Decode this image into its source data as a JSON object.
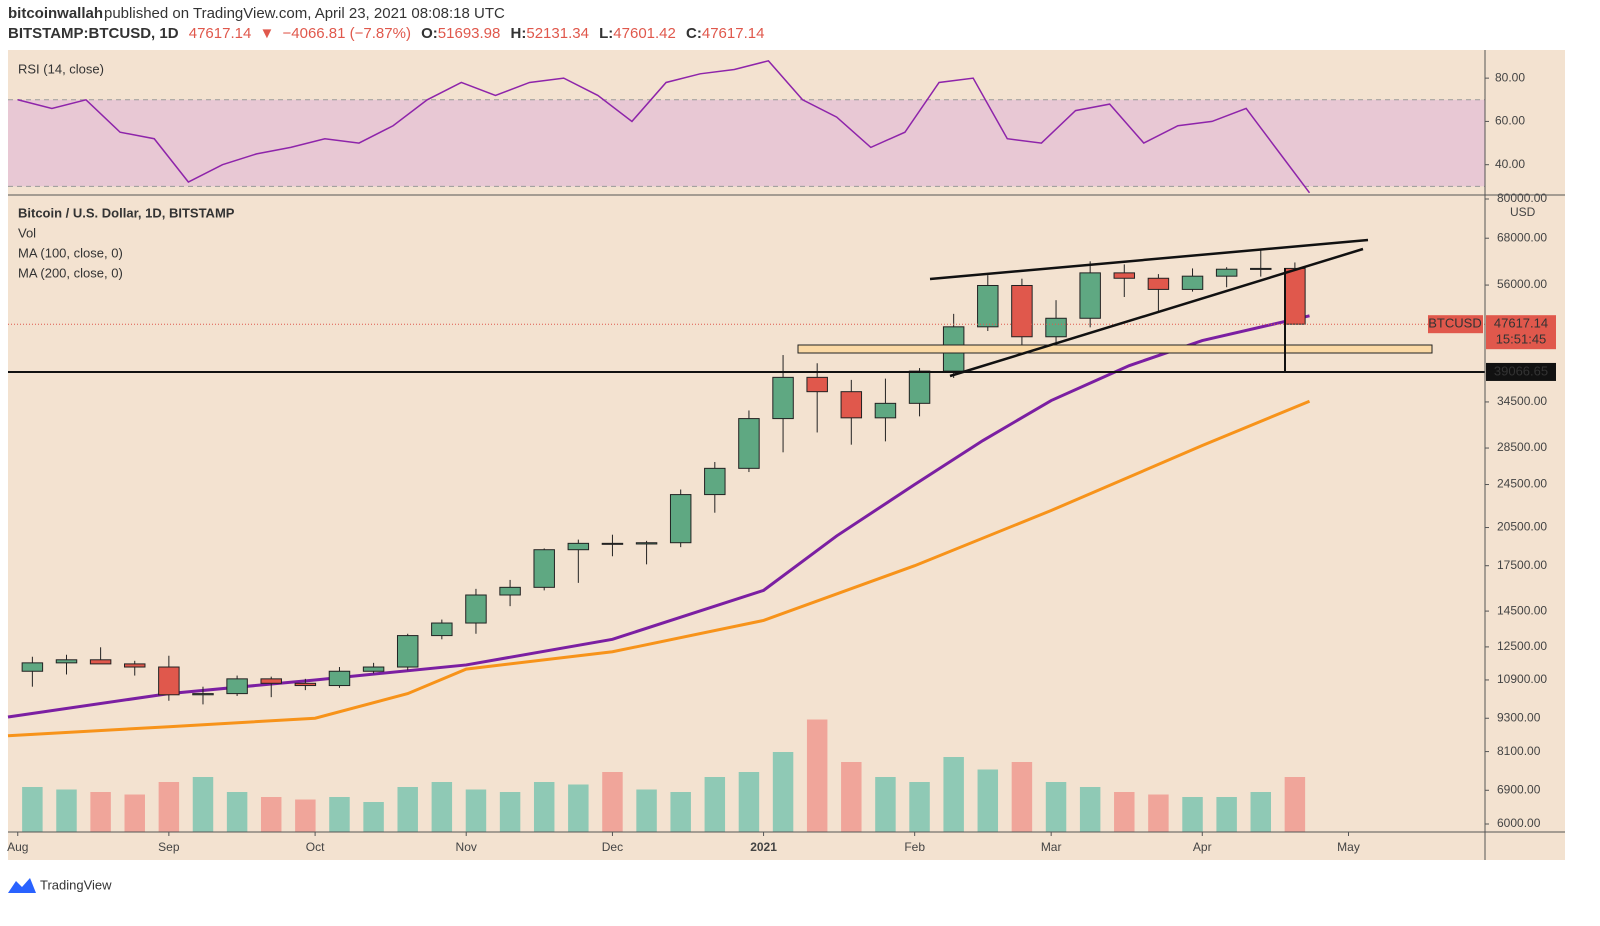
{
  "header": {
    "author": "bitcoinwallah",
    "published": "published on TradingView.com, April 23, 2021 08:08:18 UTC",
    "symbol": "BITSTAMP:BTCUSD, 1D",
    "last": "47617.14",
    "arrow": "▼",
    "change": "−4066.81 (−7.87%)",
    "ohlc": [
      {
        "label": "O:",
        "value": "51693.98"
      },
      {
        "label": "H:",
        "value": "52131.34"
      },
      {
        "label": "L:",
        "value": "47601.42"
      },
      {
        "label": "C:",
        "value": "47617.14"
      }
    ]
  },
  "chart_data": [
    {
      "type": "line",
      "title": "RSI (14, close)",
      "x": [
        0,
        7,
        14,
        21,
        28,
        35,
        42,
        49,
        56,
        63,
        70,
        77,
        84,
        91,
        98,
        105,
        112,
        119,
        126,
        133,
        140,
        147,
        154,
        161,
        168,
        175,
        182,
        189,
        196,
        203,
        210,
        217,
        224,
        231,
        238,
        245,
        252,
        259,
        265
      ],
      "values": [
        70,
        66,
        70,
        55,
        52,
        32,
        40,
        45,
        48,
        52,
        50,
        58,
        70,
        78,
        72,
        78,
        80,
        72,
        60,
        78,
        82,
        84,
        88,
        70,
        62,
        48,
        55,
        78,
        80,
        52,
        50,
        65,
        68,
        50,
        58,
        60,
        66,
        45,
        27
      ],
      "color": "#8e24aa",
      "bands": [
        30,
        70
      ],
      "band_color": "#e8c8d4",
      "xlim": [
        -2,
        301
      ],
      "ylim": [
        26,
        93
      ],
      "yticks": [
        {
          "value": 80,
          "label": "80.00"
        },
        {
          "value": 60,
          "label": "60.00"
        },
        {
          "value": 40,
          "label": "40.00"
        }
      ]
    },
    {
      "type": "candlestick",
      "title": "Bitcoin / U.S. Dollar, 1D, BITSTAMP",
      "currency": "USD",
      "log_scale": true,
      "x": [
        3,
        10,
        17,
        24,
        31,
        38,
        45,
        52,
        59,
        66,
        73,
        80,
        87,
        94,
        101,
        108,
        115,
        122,
        129,
        136,
        143,
        150,
        157,
        164,
        171,
        178,
        185,
        192,
        199,
        206,
        213,
        220,
        227,
        234,
        241,
        248,
        255,
        262
      ],
      "open": [
        11300,
        11700,
        11850,
        11650,
        11500,
        10250,
        10300,
        10950,
        10750,
        10650,
        11300,
        11500,
        13100,
        13800,
        15500,
        16000,
        18700,
        19200,
        19150,
        19250,
        23500,
        26200,
        32200,
        38200,
        36000,
        32300,
        34300,
        39200,
        47100,
        55900,
        45200,
        48800,
        58900,
        57600,
        55000,
        58100,
        59800,
        60000
      ],
      "high": [
        12000,
        12100,
        12480,
        11800,
        12050,
        10600,
        11100,
        11050,
        10950,
        11500,
        11700,
        13200,
        14000,
        15900,
        16500,
        18800,
        19500,
        19900,
        19400,
        24000,
        26900,
        33300,
        41900,
        40500,
        37800,
        38000,
        39700,
        49700,
        58350,
        57500,
        52600,
        61800,
        61000,
        58600,
        60000,
        60300,
        64900,
        61500
      ],
      "low": [
        10600,
        11150,
        11700,
        11100,
        10000,
        9850,
        10200,
        10150,
        10450,
        10550,
        11200,
        11350,
        12900,
        13200,
        14800,
        15800,
        16300,
        18200,
        17600,
        18900,
        21800,
        25800,
        28000,
        30400,
        28900,
        29300,
        32500,
        38100,
        46300,
        43000,
        43000,
        47000,
        53300,
        50300,
        54500,
        55500,
        58000,
        47600
      ],
      "close": [
        11700,
        11850,
        11650,
        11500,
        10250,
        10300,
        10950,
        10750,
        10650,
        11300,
        11500,
        13100,
        13800,
        15500,
        16000,
        18700,
        19200,
        19150,
        19250,
        23500,
        26200,
        32200,
        38200,
        36000,
        32300,
        34300,
        39200,
        47100,
        55900,
        45200,
        48800,
        58900,
        57600,
        55000,
        58100,
        59800,
        60000,
        47617.14
      ],
      "up_color": "#5fa882",
      "down_color": "#e0584c",
      "volume": {
        "name": "Vol",
        "values": [
          18,
          17,
          16,
          15,
          20,
          22,
          16,
          14,
          13,
          14,
          12,
          18,
          20,
          17,
          16,
          20,
          19,
          24,
          17,
          16,
          22,
          24,
          32,
          45,
          28,
          22,
          20,
          30,
          25,
          28,
          20,
          18,
          16,
          15,
          14,
          14,
          16,
          22
        ],
        "ylim": [
          0,
          100
        ],
        "up_color": "#8fc9b5",
        "down_color": "#f0a59a"
      },
      "series": [
        {
          "name": "MA (100, close, 0)",
          "color": "#7b1fa2",
          "x": [
            -2,
            31,
            61,
            92,
            122,
            153,
            168,
            184,
            198,
            212,
            228,
            243,
            265
          ],
          "values": [
            9350,
            10300,
            10900,
            11600,
            12900,
            15800,
            19800,
            24500,
            29400,
            34700,
            40100,
            44500,
            49300
          ]
        },
        {
          "name": "MA (200, close, 0)",
          "color": "#f7931a",
          "x": [
            -2,
            31,
            61,
            80,
            92,
            122,
            153,
            184,
            212,
            243,
            265
          ],
          "values": [
            8650,
            8980,
            9300,
            10300,
            11400,
            12250,
            13950,
            17500,
            22000,
            28800,
            34600
          ]
        }
      ],
      "symbol_tag": "BTCUSD",
      "last_price": {
        "value": 47617.14,
        "label": "47617.14"
      },
      "countdown": "15:51:45",
      "hline": {
        "value": 39066.65,
        "label": "39066.65"
      },
      "xlim": [
        -2,
        301
      ],
      "ylim": [
        6000,
        80000
      ],
      "xticks": [
        {
          "value": 0,
          "label": "Aug"
        },
        {
          "value": 31,
          "label": "Sep"
        },
        {
          "value": 61,
          "label": "Oct"
        },
        {
          "value": 92,
          "label": "Nov"
        },
        {
          "value": 122,
          "label": "Dec"
        },
        {
          "value": 153,
          "label": "2021"
        },
        {
          "value": 184,
          "label": "Feb"
        },
        {
          "value": 212,
          "label": "Mar"
        },
        {
          "value": 243,
          "label": "Apr"
        },
        {
          "value": 273,
          "label": "May"
        }
      ],
      "yticks": [
        {
          "value": 80000,
          "label": "80000.00"
        },
        {
          "value": 68000,
          "label": "68000.00"
        },
        {
          "value": 56000,
          "label": "56000.00"
        },
        {
          "value": 34500,
          "label": "34500.00"
        },
        {
          "value": 28500,
          "label": "28500.00"
        },
        {
          "value": 24500,
          "label": "24500.00"
        },
        {
          "value": 20500,
          "label": "20500.00"
        },
        {
          "value": 17500,
          "label": "17500.00"
        },
        {
          "value": 14500,
          "label": "14500.00"
        },
        {
          "value": 12500,
          "label": "12500.00"
        },
        {
          "value": 10900,
          "label": "10900.00"
        },
        {
          "value": 9300,
          "label": "9300.00"
        },
        {
          "value": 8100,
          "label": "8100.00"
        },
        {
          "value": 6900,
          "label": "6900.00"
        },
        {
          "value": 6000,
          "label": "6000.00"
        }
      ]
    }
  ],
  "footer": {
    "brand": "TradingView"
  }
}
